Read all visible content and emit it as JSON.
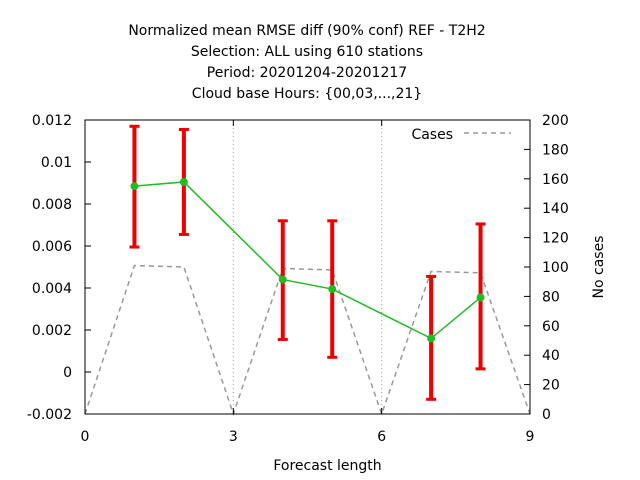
{
  "chart_data": {
    "type": "line",
    "title_lines": [
      "Normalized mean RMSE diff (90% conf) REF - T2H2",
      "Selection: ALL using    610 stations",
      "Period: 20201204-20201217",
      "Cloud base   Hours: {00,03,...,21}"
    ],
    "xlabel": "Forecast length",
    "ylabel": "",
    "y2label": "No cases",
    "xlim": [
      0,
      9
    ],
    "ylim": [
      -0.002,
      0.012
    ],
    "y2lim": [
      0,
      200
    ],
    "x_ticks": [
      0,
      3,
      6,
      9
    ],
    "x_tick_labels": [
      "0",
      "3",
      "6",
      "9"
    ],
    "y_ticks": [
      -0.002,
      0,
      0.002,
      0.004,
      0.006,
      0.008,
      0.01,
      0.012
    ],
    "y_tick_labels": [
      "-0.002",
      "0",
      "0.002",
      "0.004",
      "0.006",
      "0.008",
      "0.01",
      "0.012"
    ],
    "y2_ticks": [
      0,
      20,
      40,
      60,
      80,
      100,
      120,
      140,
      160,
      180,
      200
    ],
    "y2_tick_labels": [
      "0",
      "20",
      "40",
      "60",
      "80",
      "100",
      "120",
      "140",
      "160",
      "180",
      "200"
    ],
    "grid": true,
    "legend_position": "top-right",
    "series": [
      {
        "kind": "mean_with_ci",
        "color": "#22bb22",
        "errorbar_color": "#ee0000",
        "x": [
          1,
          2,
          4,
          5,
          7,
          8
        ],
        "y": [
          0.00885,
          0.00905,
          0.0044,
          0.00395,
          0.0016,
          0.00355
        ],
        "ci_low": [
          0.00595,
          0.00655,
          0.00155,
          0.0007,
          -0.0013,
          0.00015
        ],
        "ci_high": [
          0.0117,
          0.01155,
          0.0072,
          0.0072,
          0.00455,
          0.00705
        ]
      },
      {
        "name": "Cases",
        "axis": "y2",
        "style": "dashed",
        "color": "#999999",
        "x": [
          0,
          1,
          2,
          3,
          4,
          5,
          6,
          7,
          8,
          9
        ],
        "y": [
          0,
          101,
          100,
          0,
          99,
          98,
          0,
          97,
          96,
          0
        ]
      }
    ]
  }
}
